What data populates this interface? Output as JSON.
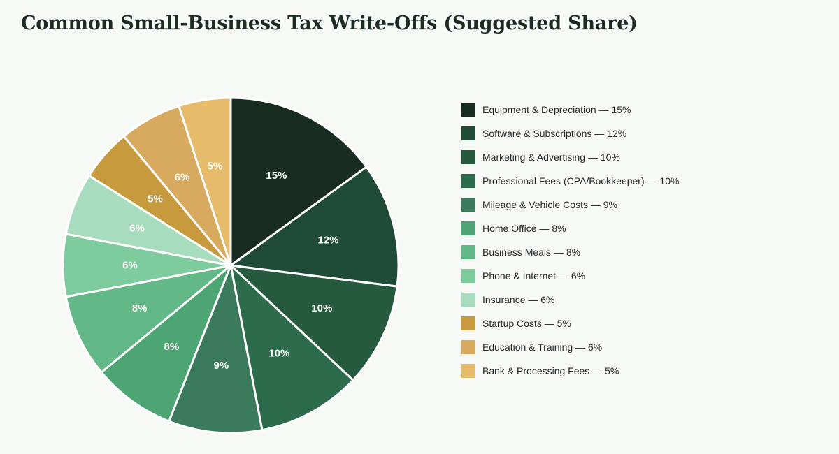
{
  "chart_data": {
    "type": "pie",
    "title": "Common Small-Business Tax Write-Offs (Suggested Share)",
    "unit": "%",
    "legend_position": "right",
    "slices": [
      {
        "label": "Equipment & Depreciation",
        "value": 15,
        "color": "#182d20"
      },
      {
        "label": "Software & Subscriptions",
        "value": 12,
        "color": "#1e4a36"
      },
      {
        "label": "Marketing & Advertising",
        "value": 10,
        "color": "#265a3f"
      },
      {
        "label": "Professional Fees (CPA/Bookkeeper)",
        "value": 10,
        "color": "#2d6b4d"
      },
      {
        "label": "Mileage & Vehicle Costs",
        "value": 9,
        "color": "#3b7a5c"
      },
      {
        "label": "Home Office",
        "value": 8,
        "color": "#4ea574"
      },
      {
        "label": "Business Meals",
        "value": 8,
        "color": "#62b887"
      },
      {
        "label": "Phone & Internet",
        "value": 6,
        "color": "#7ecb9e"
      },
      {
        "label": "Insurance",
        "value": 6,
        "color": "#a8dcbe"
      },
      {
        "label": "Startup Costs",
        "value": 5,
        "color": "#c89a3e"
      },
      {
        "label": "Education & Training",
        "value": 6,
        "color": "#d8aa60"
      },
      {
        "label": "Bank & Processing Fees",
        "value": 5,
        "color": "#e6bb6a"
      }
    ]
  }
}
